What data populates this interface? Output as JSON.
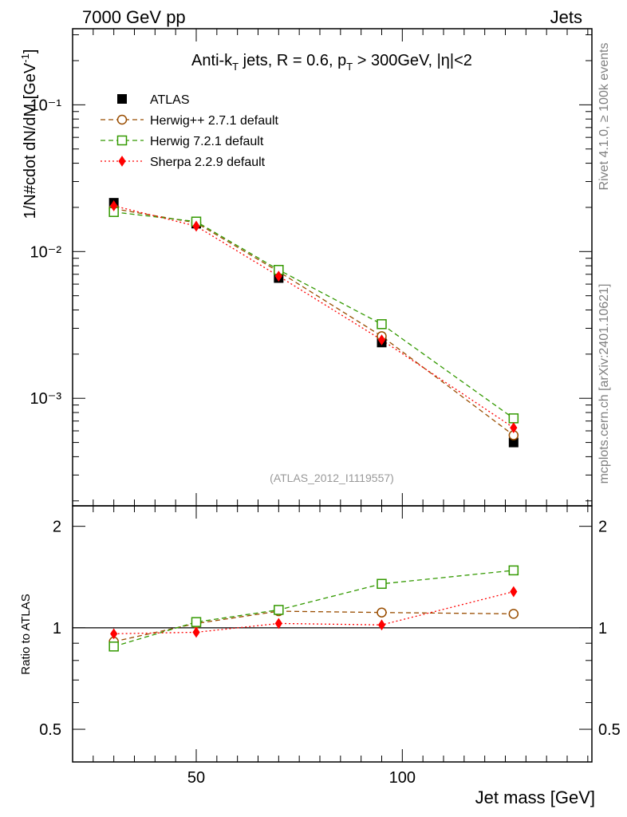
{
  "header": {
    "left": "7000 GeV pp",
    "right": "Jets"
  },
  "side_labels": {
    "rivet": "Rivet 4.1.0, ≥ 100k events",
    "mcplots": "mcplots.cern.ch [arXiv:2401.10621]"
  },
  "chart_data": {
    "type": "line",
    "title": "Anti-k_T jets, R = 0.6, p_T > 300GeV, |η|<2",
    "analysis_id": "(ATLAS_2012_I1119557)",
    "xlabel": "Jet mass [GeV]",
    "ylabel": "1/N#cdot dN/dM [GeV⁻¹]",
    "ratio_ylabel": "Ratio to ATLAS",
    "xlim": [
      20,
      146
    ],
    "ylim": [
      0.000185,
      0.33
    ],
    "ratio_ylim": [
      0.4,
      2.3
    ],
    "x_ticks": [
      50,
      100
    ],
    "y_tick_labels": [
      "10⁻¹",
      "10⁻²",
      "10⁻³"
    ],
    "ratio_ticks": [
      "0.5",
      "1",
      "2"
    ],
    "x": [
      30,
      50,
      70,
      95,
      127
    ],
    "data": {
      "name": "ATLAS",
      "color": "#000000",
      "values": [
        0.0215,
        0.0155,
        0.0066,
        0.0024,
        0.0005
      ]
    },
    "series": [
      {
        "name": "Herwig++ 2.7.1 default",
        "color": "#994d00",
        "marker": "circle",
        "values": [
          0.0196,
          0.0157,
          0.0073,
          0.00265,
          0.00056
        ],
        "ratio": [
          0.91,
          1.03,
          1.12,
          1.11,
          1.1
        ]
      },
      {
        "name": "Herwig 7.2.1 default",
        "color": "#339900",
        "marker": "square",
        "values": [
          0.0186,
          0.016,
          0.0075,
          0.0032,
          0.00073
        ],
        "ratio": [
          0.88,
          1.04,
          1.13,
          1.35,
          1.48
        ]
      },
      {
        "name": "Sherpa 2.2.9 default",
        "color": "#ff0000",
        "marker": "diamond",
        "values": [
          0.0205,
          0.0149,
          0.0068,
          0.0025,
          0.00063
        ],
        "ratio": [
          0.96,
          0.97,
          1.03,
          1.02,
          1.28
        ]
      }
    ]
  }
}
